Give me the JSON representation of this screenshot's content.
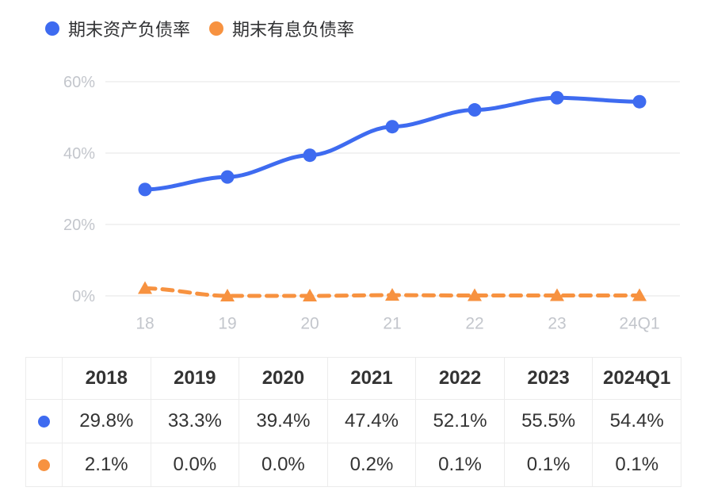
{
  "legend": {
    "items": [
      {
        "label": "期末资产负债率",
        "color": "#3e6bf0"
      },
      {
        "label": "期末有息负债率",
        "color": "#f79240"
      }
    ]
  },
  "chart_data": {
    "type": "line",
    "title": "",
    "categories": [
      "18",
      "19",
      "20",
      "21",
      "22",
      "23",
      "24Q1"
    ],
    "series": [
      {
        "name": "期末资产负债率",
        "color": "#3e6bf0",
        "style": "solid",
        "marker": "circle",
        "values": [
          29.8,
          33.3,
          39.4,
          47.4,
          52.1,
          55.5,
          54.4
        ]
      },
      {
        "name": "期末有息负债率",
        "color": "#f79240",
        "style": "dashed",
        "marker": "triangle",
        "values": [
          2.1,
          0.0,
          0.0,
          0.2,
          0.1,
          0.1,
          0.1
        ]
      }
    ],
    "ylim": [
      0,
      60
    ],
    "y_ticks": [
      {
        "value": 0,
        "label": "0%"
      },
      {
        "value": 20,
        "label": "20%"
      },
      {
        "value": 40,
        "label": "40%"
      },
      {
        "value": 60,
        "label": "60%"
      }
    ],
    "grid": true,
    "legend_position": "top-left",
    "axis_label_color": "#c3c6cc",
    "gridline_color": "#ededed"
  },
  "table": {
    "headers": [
      "",
      "2018",
      "2019",
      "2020",
      "2021",
      "2022",
      "2023",
      "2024Q1"
    ],
    "rows": [
      {
        "series": "期末资产负债率",
        "color": "#3e6bf0",
        "values": [
          "29.8%",
          "33.3%",
          "39.4%",
          "47.4%",
          "52.1%",
          "55.5%",
          "54.4%"
        ]
      },
      {
        "series": "期末有息负债率",
        "color": "#f79240",
        "values": [
          "2.1%",
          "0.0%",
          "0.0%",
          "0.2%",
          "0.1%",
          "0.1%",
          "0.1%"
        ]
      }
    ]
  }
}
